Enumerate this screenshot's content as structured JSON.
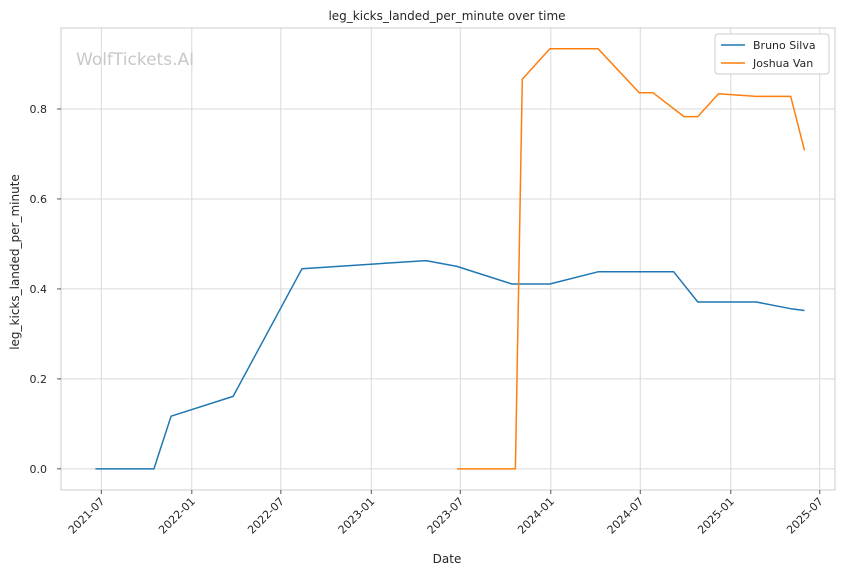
{
  "chart_data": {
    "type": "line",
    "title": "leg_kicks_landed_per_minute over time",
    "xlabel": "Date",
    "ylabel": "leg_kicks_landed_per_minute",
    "watermark": "WolfTickets.AI",
    "xlim": [
      "2021-04-10",
      "2025-08-01"
    ],
    "ylim": [
      -0.047,
      0.98
    ],
    "x_ticks": [
      "2021-07-01",
      "2022-01-01",
      "2022-07-01",
      "2023-01-01",
      "2023-07-01",
      "2024-01-01",
      "2024-07-01",
      "2025-01-01",
      "2025-07-01"
    ],
    "x_tick_labels": [
      "2021-07",
      "2022-01",
      "2022-07",
      "2023-01",
      "2023-07",
      "2024-01",
      "2024-07",
      "2025-01",
      "2025-07"
    ],
    "y_ticks": [
      0.0,
      0.2,
      0.4,
      0.6,
      0.8
    ],
    "y_tick_labels": [
      "0.0",
      "0.2",
      "0.4",
      "0.6",
      "0.8"
    ],
    "grid": true,
    "legend_position": "top-right",
    "series": [
      {
        "name": "Bruno Silva",
        "color": "#1f77b4",
        "points": [
          [
            "2021-06-19",
            0.0
          ],
          [
            "2021-10-16",
            0.0
          ],
          [
            "2021-11-20",
            0.117
          ],
          [
            "2022-03-26",
            0.161
          ],
          [
            "2022-08-13",
            0.445
          ],
          [
            "2023-04-22",
            0.463
          ],
          [
            "2023-06-24",
            0.45
          ],
          [
            "2023-10-14",
            0.411
          ],
          [
            "2023-12-30",
            0.411
          ],
          [
            "2024-04-06",
            0.438
          ],
          [
            "2024-09-07",
            0.438
          ],
          [
            "2024-10-26",
            0.371
          ],
          [
            "2025-02-22",
            0.371
          ],
          [
            "2025-05-03",
            0.356
          ],
          [
            "2025-05-31",
            0.352
          ]
        ]
      },
      {
        "name": "Joshua Van",
        "color": "#ff7f0e",
        "points": [
          [
            "2023-06-24",
            0.0
          ],
          [
            "2023-10-21",
            0.0
          ],
          [
            "2023-11-04",
            0.866
          ],
          [
            "2023-12-30",
            0.934
          ],
          [
            "2024-04-06",
            0.934
          ],
          [
            "2024-06-29",
            0.836
          ],
          [
            "2024-07-27",
            0.836
          ],
          [
            "2024-09-28",
            0.783
          ],
          [
            "2024-10-26",
            0.783
          ],
          [
            "2024-12-07",
            0.834
          ],
          [
            "2025-02-22",
            0.828
          ],
          [
            "2025-05-03",
            0.828
          ],
          [
            "2025-05-31",
            0.708
          ]
        ]
      }
    ]
  }
}
